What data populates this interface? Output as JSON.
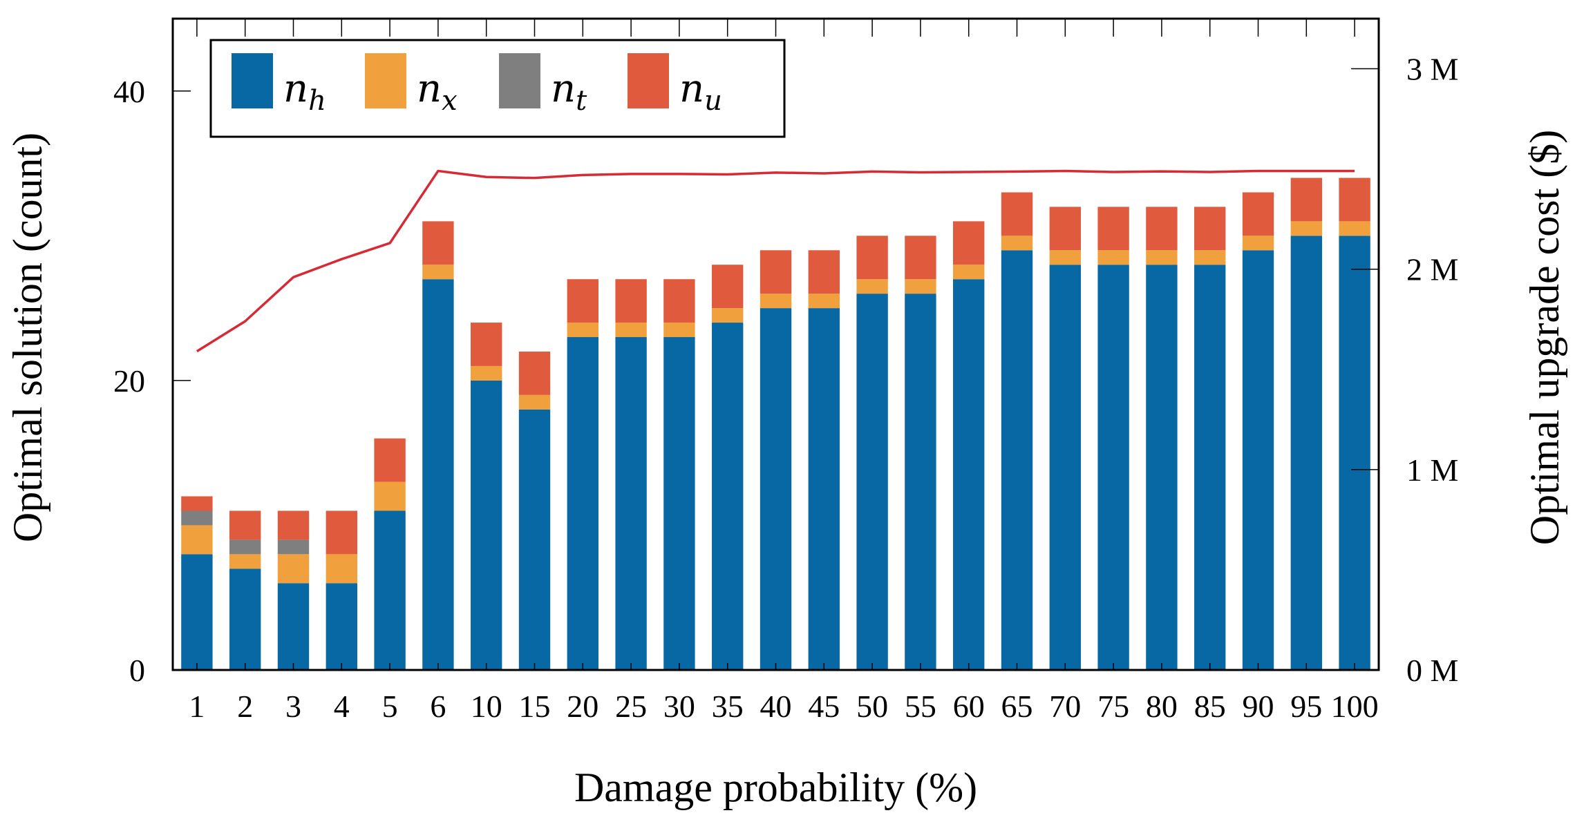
{
  "chart_data": {
    "type": "bar",
    "stacked": true,
    "xlabel": "Damage probability (%)",
    "ylabel": "Optimal solution (count)",
    "y2label": "Optimal upgrade cost ($)",
    "ylim": [
      0,
      45
    ],
    "yticks": [
      "0",
      "20",
      "40"
    ],
    "y2lim": [
      0,
      3.25
    ],
    "y2ticks": [
      "0 M",
      "1 M",
      "2 M",
      "3 M"
    ],
    "categories": [
      "1",
      "2",
      "3",
      "4",
      "5",
      "6",
      "10",
      "15",
      "20",
      "25",
      "30",
      "35",
      "40",
      "45",
      "50",
      "55",
      "60",
      "65",
      "70",
      "75",
      "80",
      "85",
      "90",
      "95",
      "100"
    ],
    "legend_position": "top-left",
    "series": [
      {
        "name": "n",
        "sub": "h",
        "color": "#0868a3",
        "values": [
          8,
          7,
          6,
          6,
          11,
          27,
          20,
          18,
          23,
          23,
          23,
          24,
          25,
          25,
          26,
          26,
          27,
          29,
          28,
          28,
          28,
          28,
          29,
          30,
          30
        ]
      },
      {
        "name": "n",
        "sub": "x",
        "color": "#f0a03c",
        "values": [
          2,
          1,
          2,
          2,
          2,
          1,
          1,
          1,
          1,
          1,
          1,
          1,
          1,
          1,
          1,
          1,
          1,
          1,
          1,
          1,
          1,
          1,
          1,
          1,
          1
        ]
      },
      {
        "name": "n",
        "sub": "t",
        "color": "#7f7f7f",
        "values": [
          1,
          1,
          1,
          0,
          0,
          0,
          0,
          0,
          0,
          0,
          0,
          0,
          0,
          0,
          0,
          0,
          0,
          0,
          0,
          0,
          0,
          0,
          0,
          0,
          0
        ]
      },
      {
        "name": "n",
        "sub": "u",
        "color": "#e05a3e",
        "values": [
          1,
          2,
          2,
          3,
          3,
          3,
          3,
          3,
          3,
          3,
          3,
          3,
          3,
          3,
          3,
          3,
          3,
          3,
          3,
          3,
          3,
          3,
          3,
          3,
          3
        ]
      }
    ],
    "line": {
      "color": "#d62a35",
      "axis": "right",
      "values_millions": [
        1.59,
        1.74,
        1.96,
        2.05,
        2.13,
        2.49,
        2.46,
        2.455,
        2.47,
        2.475,
        2.475,
        2.473,
        2.482,
        2.478,
        2.487,
        2.483,
        2.485,
        2.487,
        2.49,
        2.485,
        2.488,
        2.485,
        2.49,
        2.49,
        2.49
      ]
    }
  }
}
